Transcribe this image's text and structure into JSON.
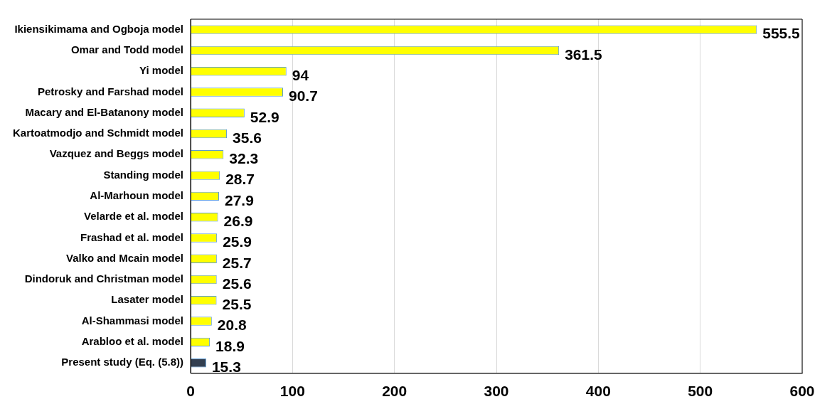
{
  "chart_data": {
    "type": "bar",
    "orientation": "horizontal",
    "categories": [
      "Ikiensikimama and Ogboja model",
      "Omar and Todd model",
      "Yi model",
      "Petrosky and Farshad model",
      "Macary and El-Batanony model",
      "Kartoatmodjo and Schmidt model",
      "Vazquez and Beggs model",
      "Standing model",
      "Al-Marhoun model",
      "Velarde et al. model",
      "Frashad et al. model",
      "Valko and Mcain model",
      "Dindoruk and Christman model",
      "Lasater model",
      "Al-Shammasi model",
      "Arabloo et al. model",
      "Present study (Eq. (5.8))"
    ],
    "values": [
      555.5,
      361.5,
      94,
      90.7,
      52.9,
      35.6,
      32.3,
      28.7,
      27.9,
      26.9,
      25.9,
      25.7,
      25.6,
      25.5,
      20.8,
      18.9,
      15.3
    ],
    "colors": [
      "#ffff00",
      "#ffff00",
      "#ffff00",
      "#ffff00",
      "#ffff00",
      "#ffff00",
      "#ffff00",
      "#ffff00",
      "#ffff00",
      "#ffff00",
      "#ffff00",
      "#ffff00",
      "#ffff00",
      "#ffff00",
      "#ffff00",
      "#ffff00",
      "#333f50"
    ],
    "xlim": [
      0,
      600
    ],
    "xticks": [
      0,
      100,
      200,
      300,
      400,
      500,
      600
    ],
    "grid": "x",
    "legend": false,
    "data_labels": true
  }
}
